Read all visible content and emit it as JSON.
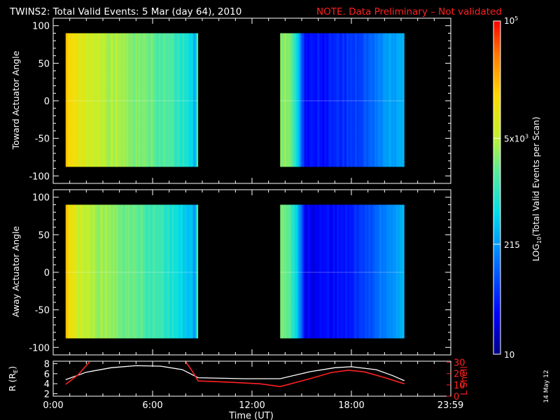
{
  "header": {
    "title": "TWINS2: Total Valid Events:  5 Mar (day  64), 2010",
    "note": "NOTE. Data Preliminary – Not validated",
    "note_color": "#ff2020"
  },
  "footer": {
    "date_stamp": "14 May 12"
  },
  "chart_data": [
    {
      "type": "heatmap",
      "ylabel": "Toward Actuator Angle",
      "ylim": [
        -110,
        110
      ],
      "yticks": [
        "100",
        "50",
        "0",
        "-50",
        "-100"
      ],
      "xlim": [
        0,
        24
      ],
      "data_blocks": [
        {
          "t_start": 0.75,
          "t_end": 8.75,
          "angle_min": -88,
          "angle_max": 90,
          "profile": [
            [
              0.75,
              0.84
            ],
            [
              1.0,
              0.78
            ],
            [
              1.6,
              0.7
            ],
            [
              3.5,
              0.64
            ],
            [
              5.5,
              0.57
            ],
            [
              7.0,
              0.52
            ],
            [
              8.2,
              0.45
            ],
            [
              8.6,
              0.37
            ],
            [
              8.75,
              0.64
            ]
          ]
        },
        {
          "t_start": 13.7,
          "t_end": 21.2,
          "angle_min": -88,
          "angle_max": 90,
          "profile": [
            [
              13.7,
              0.6
            ],
            [
              14.3,
              0.58
            ],
            [
              14.8,
              0.4
            ],
            [
              15.2,
              0.12
            ],
            [
              17.0,
              0.16
            ],
            [
              18.5,
              0.22
            ],
            [
              19.3,
              0.26
            ],
            [
              20.0,
              0.33
            ],
            [
              21.2,
              0.38
            ]
          ]
        }
      ]
    },
    {
      "type": "heatmap",
      "ylabel": "Away Actuator Angle",
      "ylim": [
        -110,
        110
      ],
      "yticks": [
        "100",
        "50",
        "0",
        "-50",
        "-100"
      ],
      "xlim": [
        0,
        24
      ],
      "data_blocks": [
        {
          "t_start": 0.75,
          "t_end": 8.75,
          "angle_min": -88,
          "angle_max": 90,
          "profile": [
            [
              0.75,
              0.8
            ],
            [
              1.0,
              0.74
            ],
            [
              1.6,
              0.67
            ],
            [
              3.5,
              0.6
            ],
            [
              5.5,
              0.53
            ],
            [
              7.0,
              0.47
            ],
            [
              8.2,
              0.4
            ],
            [
              8.6,
              0.33
            ],
            [
              8.75,
              0.62
            ]
          ]
        },
        {
          "t_start": 13.7,
          "t_end": 21.2,
          "angle_min": -88,
          "angle_max": 90,
          "profile": [
            [
              13.7,
              0.58
            ],
            [
              14.3,
              0.55
            ],
            [
              14.8,
              0.36
            ],
            [
              15.2,
              0.1
            ],
            [
              17.0,
              0.13
            ],
            [
              18.5,
              0.19
            ],
            [
              19.3,
              0.24
            ],
            [
              20.0,
              0.31
            ],
            [
              21.2,
              0.36
            ]
          ]
        }
      ]
    },
    {
      "type": "line",
      "xlabel": "Time (UT)",
      "xticks": [
        "0:00",
        "6:00",
        "12:00",
        "18:00",
        "23:59"
      ],
      "xtick_hours": [
        0,
        6,
        12,
        18,
        23.98
      ],
      "xlim": [
        0,
        24
      ],
      "ylabel_left": "R (R",
      "ylabel_left_sub": "E",
      "ylabel_left_end": ")",
      "ylim_left": [
        1.5,
        8.5
      ],
      "yticks_left": [
        "8",
        "6",
        "4",
        "2"
      ],
      "ylabel_right": "L Shell",
      "ylim_right": [
        0,
        31
      ],
      "yticks_right": [
        "30",
        "20",
        "10",
        "0"
      ],
      "series": [
        {
          "axis": "left",
          "color": "#ffffff",
          "points": [
            [
              0.75,
              4.8
            ],
            [
              2.0,
              6.3
            ],
            [
              3.5,
              7.2
            ],
            [
              5.0,
              7.6
            ],
            [
              6.5,
              7.5
            ],
            [
              7.8,
              6.8
            ],
            [
              8.75,
              5.2
            ],
            [
              11.5,
              5.0
            ],
            [
              13.7,
              5.0
            ],
            [
              15.5,
              6.4
            ],
            [
              17.0,
              7.2
            ],
            [
              18.0,
              7.4
            ],
            [
              19.5,
              6.8
            ],
            [
              20.5,
              5.6
            ],
            [
              21.2,
              4.6
            ]
          ]
        },
        {
          "axis": "right",
          "color": "#ff2020",
          "points": [
            [
              0.75,
              10.5
            ],
            [
              1.5,
              19
            ],
            [
              2.2,
              30.5
            ]
          ]
        },
        {
          "axis": "right",
          "color": "#ff2020",
          "points": [
            [
              8.0,
              30.5
            ],
            [
              8.4,
              22
            ],
            [
              8.75,
              13.5
            ],
            [
              10.5,
              12.5
            ],
            [
              12.5,
              11.0
            ],
            [
              13.7,
              8.5
            ],
            [
              15.5,
              15.5
            ],
            [
              16.8,
              21
            ],
            [
              17.8,
              23
            ],
            [
              18.8,
              21.5
            ],
            [
              20.0,
              16.5
            ],
            [
              21.2,
              11
            ]
          ]
        }
      ]
    },
    {
      "type": "colorbar",
      "label": "LOG",
      "label_sub": "10",
      "label_end": "(Total Valid Events per Scan)",
      "ticks": [
        {
          "text": "10",
          "sup": "5",
          "pos": 1.0
        },
        {
          "text": "5x10",
          "sup": "3",
          "pos": 0.648
        },
        {
          "text": "215",
          "sup": "",
          "pos": 0.33
        },
        {
          "text": "10",
          "sup": "",
          "pos": 0.0
        }
      ]
    }
  ]
}
